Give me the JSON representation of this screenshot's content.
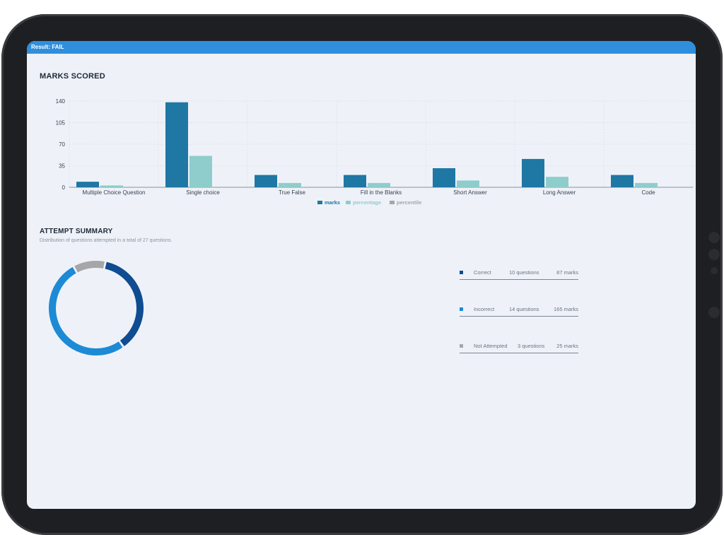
{
  "result_label": "Result: FAIL",
  "marks_section": {
    "title": "MARKS SCORED"
  },
  "chart_data": {
    "type": "bar",
    "title": "MARKS SCORED",
    "categories": [
      "Multiple Choice Question",
      "Single choice",
      "True False",
      "Fill in the Blanks",
      "Short Answer",
      "Long Answer",
      "Code"
    ],
    "series": [
      {
        "name": "marks",
        "color": "#1f77a4",
        "values": [
          9,
          138,
          20,
          20,
          31,
          46,
          20
        ]
      },
      {
        "name": "percentage",
        "color": "#8ecdcc",
        "values": [
          3,
          51,
          7,
          7,
          11,
          17,
          7
        ]
      },
      {
        "name": "percentile",
        "color": "#a3a7ab",
        "values": [
          0,
          0,
          0,
          0,
          0,
          0,
          0
        ]
      }
    ],
    "yticks": [
      0,
      35,
      70,
      105,
      140
    ],
    "ylim": [
      0,
      140
    ],
    "legend_position": "bottom-center",
    "grid": true
  },
  "attempt_section": {
    "title": "ATTEMPT SUMMARY",
    "subtitle": "Distribution of questions attempted in a total of 27 questions.",
    "total_questions": 27,
    "items": [
      {
        "label": "Correct",
        "questions": "10 questions",
        "marks": "87 marks",
        "count": 10,
        "color": "#0f4c92"
      },
      {
        "label": "Incorrect",
        "questions": "14 questions",
        "marks": "165 marks",
        "count": 14,
        "color": "#1d8ad6"
      },
      {
        "label": "Not Attempted",
        "questions": "3 questions",
        "marks": "25 marks",
        "count": 3,
        "color": "#a4a6a8"
      }
    ]
  }
}
